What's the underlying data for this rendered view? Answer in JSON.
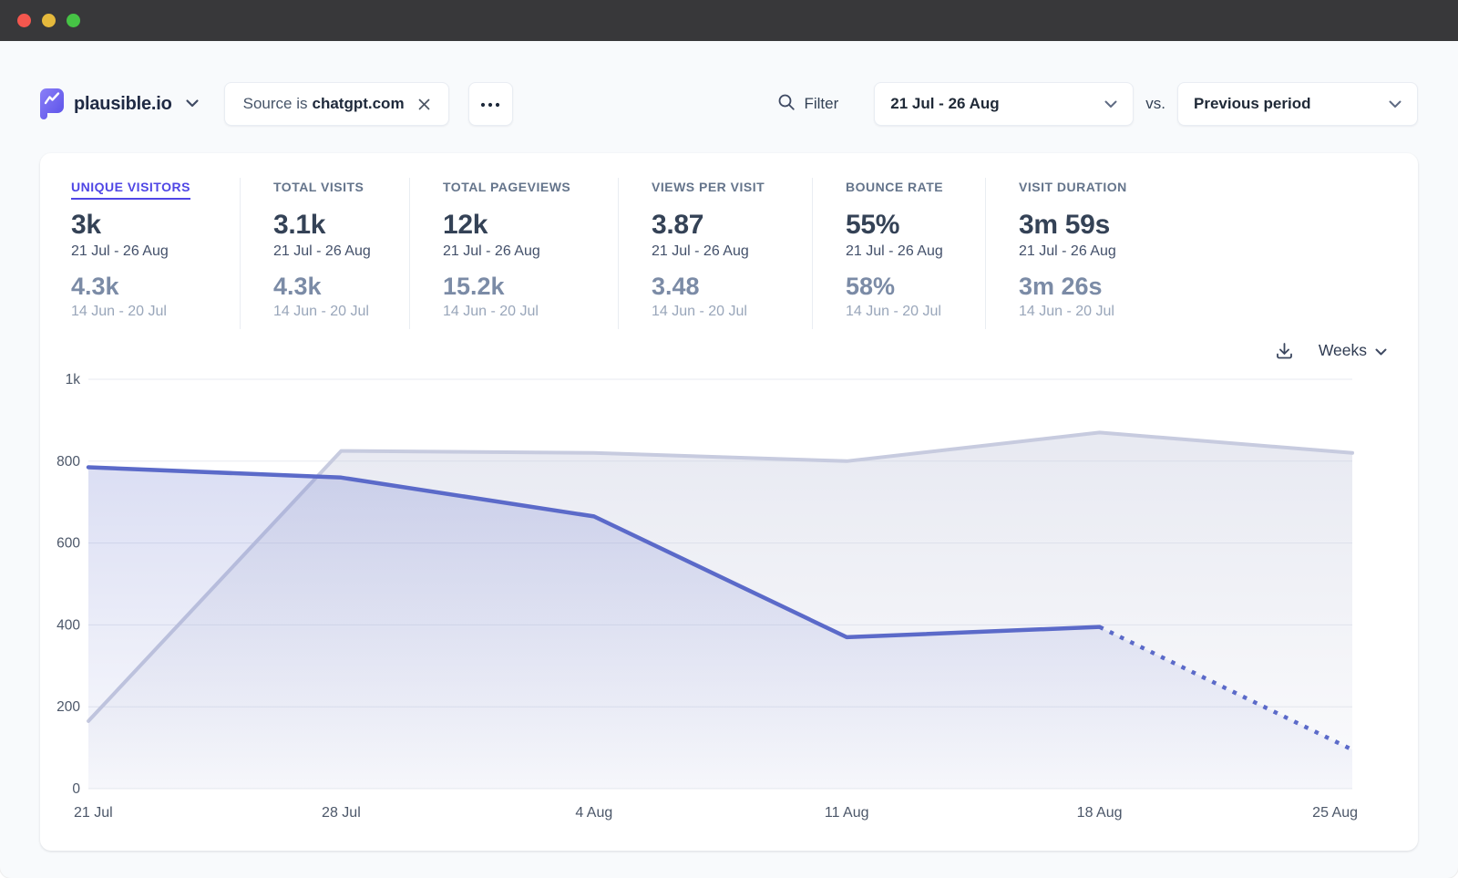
{
  "window": {
    "titlebar_color": "#38383a",
    "traffic_lights": {
      "close": "#f4574e",
      "minimize": "#e5b93c",
      "zoom": "#46c345"
    }
  },
  "header": {
    "site_name": "plausible.io",
    "filter_pill": {
      "prefix": "Source is",
      "value": "chatgpt.com"
    },
    "filter_button_label": "Filter",
    "date_range": "21 Jul - 26 Aug",
    "vs_label": "vs.",
    "comparison": "Previous period"
  },
  "metrics": [
    {
      "label": "UNIQUE VISITORS",
      "selected": true,
      "value": "3k",
      "period": "21 Jul - 26 Aug",
      "compare_value": "4.3k",
      "compare_period": "14 Jun - 20 Jul"
    },
    {
      "label": "TOTAL VISITS",
      "selected": false,
      "value": "3.1k",
      "period": "21 Jul - 26 Aug",
      "compare_value": "4.3k",
      "compare_period": "14 Jun - 20 Jul"
    },
    {
      "label": "TOTAL PAGEVIEWS",
      "selected": false,
      "value": "12k",
      "period": "21 Jul - 26 Aug",
      "compare_value": "15.2k",
      "compare_period": "14 Jun - 20 Jul"
    },
    {
      "label": "VIEWS PER VISIT",
      "selected": false,
      "value": "3.87",
      "period": "21 Jul - 26 Aug",
      "compare_value": "3.48",
      "compare_period": "14 Jun - 20 Jul"
    },
    {
      "label": "BOUNCE RATE",
      "selected": false,
      "value": "55%",
      "period": "21 Jul - 26 Aug",
      "compare_value": "58%",
      "compare_period": "14 Jun - 20 Jul"
    },
    {
      "label": "VISIT DURATION",
      "selected": false,
      "value": "3m 59s",
      "period": "21 Jul - 26 Aug",
      "compare_value": "3m 26s",
      "compare_period": "14 Jun - 20 Jul"
    }
  ],
  "chart_controls": {
    "interval_label": "Weeks"
  },
  "chart_data": {
    "type": "area",
    "x": [
      "21 Jul",
      "28 Jul",
      "4 Aug",
      "11 Aug",
      "18 Aug",
      "25 Aug"
    ],
    "series": [
      {
        "key": "current-period",
        "name": "21 Jul - 26 Aug",
        "values": [
          785,
          760,
          665,
          370,
          395,
          95
        ],
        "color": "#5b6ac9",
        "dashed_from_index": 4
      },
      {
        "key": "previous-period",
        "name": "14 Jun - 20 Jul",
        "values": [
          165,
          825,
          820,
          800,
          870,
          820
        ],
        "color": "#c7cbdf"
      }
    ],
    "ylim": [
      0,
      1000
    ],
    "yticks": [
      {
        "value": 0,
        "label": "0"
      },
      {
        "value": 200,
        "label": "200"
      },
      {
        "value": 400,
        "label": "400"
      },
      {
        "value": 600,
        "label": "600"
      },
      {
        "value": 800,
        "label": "800"
      },
      {
        "value": 1000,
        "label": "1k"
      }
    ],
    "grid": "horizontal",
    "legend": "none"
  },
  "colors": {
    "accent": "#4f46e5",
    "page_background": "#f8fafc",
    "card_background": "#ffffff"
  }
}
